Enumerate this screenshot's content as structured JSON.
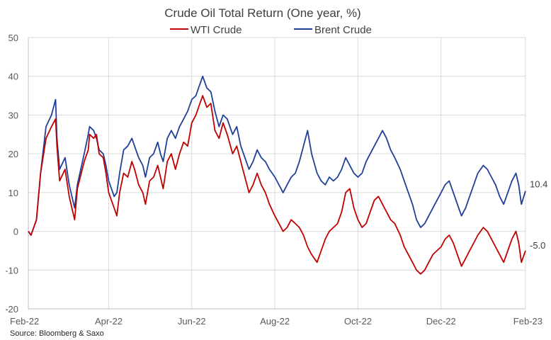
{
  "chart_data": {
    "type": "line",
    "title": "Crude Oil Total Return (One year, %)",
    "source": "Source: Bloomberg & Saxo",
    "ylim": [
      -20,
      50
    ],
    "y_ticks": [
      "-20",
      "-10",
      "0",
      "10",
      "20",
      "30",
      "40",
      "50"
    ],
    "x_range": [
      "2022-02-01",
      "2023-02-01"
    ],
    "x_ticks": [
      {
        "date": "2022-02-01",
        "label": "Feb-22"
      },
      {
        "date": "2022-04-01",
        "label": "Apr-22"
      },
      {
        "date": "2022-06-01",
        "label": "Jun-22"
      },
      {
        "date": "2022-08-01",
        "label": "Aug-22"
      },
      {
        "date": "2022-10-01",
        "label": "Oct-22"
      },
      {
        "date": "2022-12-01",
        "label": "Dec-22"
      },
      {
        "date": "2023-02-01",
        "label": "Feb-23"
      }
    ],
    "grid": true,
    "legend": "top",
    "series": [
      {
        "name": "WTI Crude",
        "color": "#c00000",
        "end_label": "-5.0",
        "points": [
          [
            "2022-02-01",
            0
          ],
          [
            "2022-02-03",
            -1
          ],
          [
            "2022-02-07",
            3
          ],
          [
            "2022-02-10",
            15
          ],
          [
            "2022-02-14",
            24
          ],
          [
            "2022-02-18",
            27
          ],
          [
            "2022-02-21",
            29
          ],
          [
            "2022-02-22",
            22
          ],
          [
            "2022-02-24",
            13
          ],
          [
            "2022-02-28",
            16
          ],
          [
            "2022-03-03",
            9
          ],
          [
            "2022-03-07",
            3
          ],
          [
            "2022-03-09",
            11
          ],
          [
            "2022-03-14",
            18
          ],
          [
            "2022-03-17",
            21
          ],
          [
            "2022-03-18",
            25
          ],
          [
            "2022-03-21",
            24
          ],
          [
            "2022-03-23",
            25
          ],
          [
            "2022-03-25",
            20
          ],
          [
            "2022-03-28",
            19
          ],
          [
            "2022-03-30",
            15
          ],
          [
            "2022-04-01",
            10
          ],
          [
            "2022-04-05",
            6
          ],
          [
            "2022-04-07",
            4
          ],
          [
            "2022-04-09",
            10
          ],
          [
            "2022-04-12",
            15
          ],
          [
            "2022-04-15",
            14
          ],
          [
            "2022-04-18",
            18
          ],
          [
            "2022-04-20",
            16
          ],
          [
            "2022-04-23",
            12
          ],
          [
            "2022-04-26",
            10
          ],
          [
            "2022-04-28",
            7
          ],
          [
            "2022-05-01",
            13
          ],
          [
            "2022-05-04",
            14
          ],
          [
            "2022-05-07",
            17
          ],
          [
            "2022-05-09",
            14
          ],
          [
            "2022-05-11",
            11
          ],
          [
            "2022-05-14",
            18
          ],
          [
            "2022-05-17",
            20
          ],
          [
            "2022-05-20",
            16
          ],
          [
            "2022-05-23",
            20
          ],
          [
            "2022-05-26",
            23
          ],
          [
            "2022-05-29",
            22
          ],
          [
            "2022-06-01",
            28
          ],
          [
            "2022-06-04",
            30
          ],
          [
            "2022-06-07",
            33
          ],
          [
            "2022-06-09",
            35
          ],
          [
            "2022-06-12",
            32
          ],
          [
            "2022-06-15",
            33
          ],
          [
            "2022-06-18",
            26
          ],
          [
            "2022-06-21",
            24
          ],
          [
            "2022-06-24",
            28
          ],
          [
            "2022-06-27",
            25
          ],
          [
            "2022-07-01",
            20
          ],
          [
            "2022-07-04",
            22
          ],
          [
            "2022-07-07",
            18
          ],
          [
            "2022-07-10",
            14
          ],
          [
            "2022-07-13",
            10
          ],
          [
            "2022-07-16",
            12
          ],
          [
            "2022-07-19",
            15
          ],
          [
            "2022-07-22",
            12
          ],
          [
            "2022-07-25",
            10
          ],
          [
            "2022-07-28",
            7
          ],
          [
            "2022-08-01",
            4
          ],
          [
            "2022-08-04",
            2
          ],
          [
            "2022-08-07",
            0
          ],
          [
            "2022-08-10",
            1
          ],
          [
            "2022-08-13",
            3
          ],
          [
            "2022-08-16",
            2
          ],
          [
            "2022-08-19",
            1
          ],
          [
            "2022-08-22",
            -1
          ],
          [
            "2022-08-25",
            -4
          ],
          [
            "2022-08-28",
            -6
          ],
          [
            "2022-09-01",
            -8
          ],
          [
            "2022-09-04",
            -5
          ],
          [
            "2022-09-07",
            -2
          ],
          [
            "2022-09-10",
            0
          ],
          [
            "2022-09-13",
            1
          ],
          [
            "2022-09-16",
            2
          ],
          [
            "2022-09-19",
            5
          ],
          [
            "2022-09-22",
            10
          ],
          [
            "2022-09-25",
            11
          ],
          [
            "2022-09-28",
            6
          ],
          [
            "2022-10-01",
            3
          ],
          [
            "2022-10-04",
            1
          ],
          [
            "2022-10-07",
            2
          ],
          [
            "2022-10-10",
            5
          ],
          [
            "2022-10-13",
            8
          ],
          [
            "2022-10-16",
            9
          ],
          [
            "2022-10-19",
            7
          ],
          [
            "2022-10-22",
            5
          ],
          [
            "2022-10-25",
            3
          ],
          [
            "2022-10-28",
            2
          ],
          [
            "2022-11-01",
            -1
          ],
          [
            "2022-11-04",
            -4
          ],
          [
            "2022-11-07",
            -6
          ],
          [
            "2022-11-10",
            -8
          ],
          [
            "2022-11-13",
            -10
          ],
          [
            "2022-11-16",
            -11
          ],
          [
            "2022-11-19",
            -10
          ],
          [
            "2022-11-22",
            -8
          ],
          [
            "2022-11-25",
            -6
          ],
          [
            "2022-11-28",
            -5
          ],
          [
            "2022-12-01",
            -4
          ],
          [
            "2022-12-04",
            -2
          ],
          [
            "2022-12-07",
            -1
          ],
          [
            "2022-12-10",
            -3
          ],
          [
            "2022-12-13",
            -6
          ],
          [
            "2022-12-16",
            -9
          ],
          [
            "2022-12-19",
            -7
          ],
          [
            "2022-12-22",
            -5
          ],
          [
            "2022-12-25",
            -3
          ],
          [
            "2022-12-28",
            -1
          ],
          [
            "2023-01-01",
            1
          ],
          [
            "2023-01-04",
            0
          ],
          [
            "2023-01-07",
            -2
          ],
          [
            "2023-01-10",
            -4
          ],
          [
            "2023-01-13",
            -6
          ],
          [
            "2023-01-16",
            -8
          ],
          [
            "2023-01-19",
            -5
          ],
          [
            "2023-01-22",
            -2
          ],
          [
            "2023-01-25",
            0
          ],
          [
            "2023-01-27",
            -3
          ],
          [
            "2023-01-29",
            -8
          ],
          [
            "2023-02-01",
            -5
          ]
        ]
      },
      {
        "name": "Brent Crude",
        "color": "#1f3f99",
        "end_label": "10.4",
        "points": [
          [
            "2022-02-01",
            0
          ],
          [
            "2022-02-03",
            -1
          ],
          [
            "2022-02-07",
            3
          ],
          [
            "2022-02-10",
            15
          ],
          [
            "2022-02-14",
            27
          ],
          [
            "2022-02-18",
            30
          ],
          [
            "2022-02-21",
            34
          ],
          [
            "2022-02-22",
            24
          ],
          [
            "2022-02-24",
            16
          ],
          [
            "2022-02-28",
            19
          ],
          [
            "2022-03-03",
            12
          ],
          [
            "2022-03-07",
            6
          ],
          [
            "2022-03-09",
            12
          ],
          [
            "2022-03-14",
            20
          ],
          [
            "2022-03-17",
            25
          ],
          [
            "2022-03-18",
            27
          ],
          [
            "2022-03-21",
            26
          ],
          [
            "2022-03-23",
            24
          ],
          [
            "2022-03-25",
            21
          ],
          [
            "2022-03-28",
            20
          ],
          [
            "2022-03-30",
            17
          ],
          [
            "2022-04-01",
            13
          ],
          [
            "2022-04-05",
            9
          ],
          [
            "2022-04-07",
            10
          ],
          [
            "2022-04-09",
            15
          ],
          [
            "2022-04-12",
            21
          ],
          [
            "2022-04-15",
            22
          ],
          [
            "2022-04-18",
            24
          ],
          [
            "2022-04-20",
            22
          ],
          [
            "2022-04-23",
            19
          ],
          [
            "2022-04-26",
            17
          ],
          [
            "2022-04-28",
            14
          ],
          [
            "2022-05-01",
            19
          ],
          [
            "2022-05-04",
            20
          ],
          [
            "2022-05-07",
            23
          ],
          [
            "2022-05-09",
            20
          ],
          [
            "2022-05-11",
            18
          ],
          [
            "2022-05-14",
            24
          ],
          [
            "2022-05-17",
            26
          ],
          [
            "2022-05-20",
            24
          ],
          [
            "2022-05-23",
            27
          ],
          [
            "2022-05-26",
            29
          ],
          [
            "2022-05-29",
            31
          ],
          [
            "2022-06-01",
            34
          ],
          [
            "2022-06-04",
            35
          ],
          [
            "2022-06-07",
            38
          ],
          [
            "2022-06-09",
            40
          ],
          [
            "2022-06-12",
            37
          ],
          [
            "2022-06-15",
            36
          ],
          [
            "2022-06-18",
            31
          ],
          [
            "2022-06-21",
            27
          ],
          [
            "2022-06-24",
            30
          ],
          [
            "2022-06-27",
            29
          ],
          [
            "2022-07-01",
            25
          ],
          [
            "2022-07-04",
            27
          ],
          [
            "2022-07-07",
            22
          ],
          [
            "2022-07-10",
            19
          ],
          [
            "2022-07-13",
            16
          ],
          [
            "2022-07-16",
            18
          ],
          [
            "2022-07-19",
            21
          ],
          [
            "2022-07-22",
            19
          ],
          [
            "2022-07-25",
            18
          ],
          [
            "2022-07-28",
            16
          ],
          [
            "2022-08-01",
            14
          ],
          [
            "2022-08-04",
            12
          ],
          [
            "2022-08-07",
            10
          ],
          [
            "2022-08-10",
            12
          ],
          [
            "2022-08-13",
            14
          ],
          [
            "2022-08-16",
            15
          ],
          [
            "2022-08-19",
            18
          ],
          [
            "2022-08-22",
            22
          ],
          [
            "2022-08-25",
            26
          ],
          [
            "2022-08-28",
            20
          ],
          [
            "2022-09-01",
            15
          ],
          [
            "2022-09-04",
            13
          ],
          [
            "2022-09-07",
            12
          ],
          [
            "2022-09-10",
            14
          ],
          [
            "2022-09-13",
            13
          ],
          [
            "2022-09-16",
            14
          ],
          [
            "2022-09-19",
            16
          ],
          [
            "2022-09-22",
            19
          ],
          [
            "2022-09-25",
            17
          ],
          [
            "2022-09-28",
            15
          ],
          [
            "2022-10-01",
            14
          ],
          [
            "2022-10-04",
            15
          ],
          [
            "2022-10-07",
            18
          ],
          [
            "2022-10-10",
            20
          ],
          [
            "2022-10-13",
            22
          ],
          [
            "2022-10-16",
            24
          ],
          [
            "2022-10-19",
            26
          ],
          [
            "2022-10-22",
            24
          ],
          [
            "2022-10-25",
            21
          ],
          [
            "2022-10-28",
            19
          ],
          [
            "2022-11-01",
            16
          ],
          [
            "2022-11-04",
            13
          ],
          [
            "2022-11-07",
            10
          ],
          [
            "2022-11-10",
            7
          ],
          [
            "2022-11-13",
            3
          ],
          [
            "2022-11-16",
            1
          ],
          [
            "2022-11-19",
            2
          ],
          [
            "2022-11-22",
            4
          ],
          [
            "2022-11-25",
            6
          ],
          [
            "2022-11-28",
            8
          ],
          [
            "2022-12-01",
            10
          ],
          [
            "2022-12-04",
            12
          ],
          [
            "2022-12-07",
            13
          ],
          [
            "2022-12-10",
            10
          ],
          [
            "2022-12-13",
            7
          ],
          [
            "2022-12-16",
            4
          ],
          [
            "2022-12-19",
            6
          ],
          [
            "2022-12-22",
            9
          ],
          [
            "2022-12-25",
            12
          ],
          [
            "2022-12-28",
            15
          ],
          [
            "2023-01-01",
            17
          ],
          [
            "2023-01-04",
            16
          ],
          [
            "2023-01-07",
            14
          ],
          [
            "2023-01-10",
            12
          ],
          [
            "2023-01-13",
            9
          ],
          [
            "2023-01-16",
            7
          ],
          [
            "2023-01-19",
            10
          ],
          [
            "2023-01-22",
            13
          ],
          [
            "2023-01-25",
            15
          ],
          [
            "2023-01-27",
            12
          ],
          [
            "2023-01-29",
            7
          ],
          [
            "2023-02-01",
            10.4
          ]
        ]
      }
    ]
  }
}
